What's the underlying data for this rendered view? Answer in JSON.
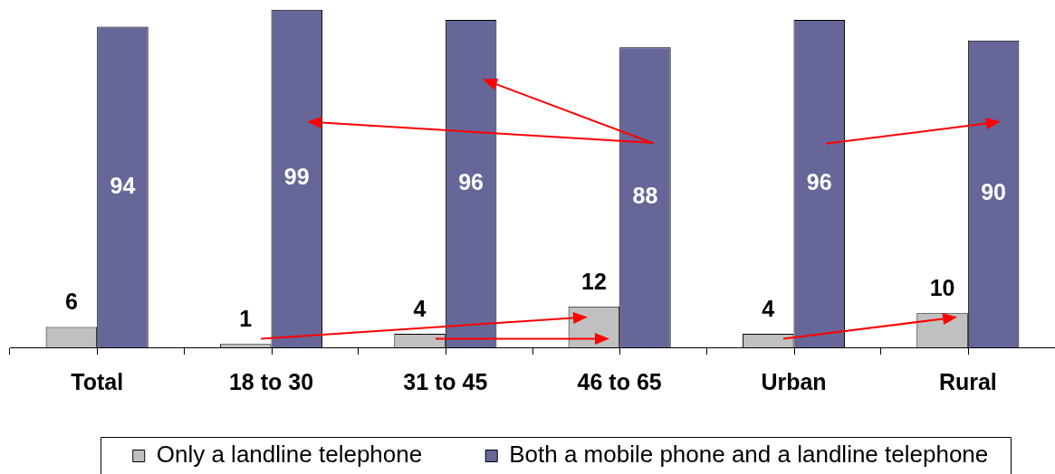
{
  "chart_data": {
    "type": "bar",
    "categories": [
      "Total",
      "18 to 30",
      "31 to 45",
      "46 to 65",
      "Urban",
      "Rural"
    ],
    "series": [
      {
        "name": "Only a landline telephone",
        "color": "#c0c0c0",
        "values": [
          6,
          1,
          4,
          12,
          4,
          10
        ]
      },
      {
        "name": "Both a mobile phone and a landline telephone",
        "color": "#666699",
        "values": [
          94,
          99,
          96,
          88,
          96,
          90
        ]
      }
    ],
    "data_labels": true,
    "legend": "bottom",
    "tick_labels": "x"
  }
}
